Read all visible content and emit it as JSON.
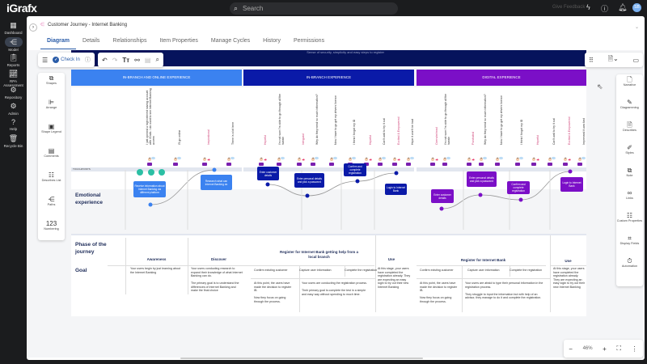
{
  "topbar": {
    "logo": "iGrafx",
    "search_placeholder": "Search",
    "feedback": "Give Feedback",
    "avatar": "SB"
  },
  "nav": [
    {
      "label": "Dashboard",
      "icon": "dashboard-icon"
    },
    {
      "label": "Model",
      "icon": "model-icon",
      "active": true
    },
    {
      "label": "Reports",
      "icon": "reports-icon"
    },
    {
      "label": "RPA Assessment",
      "icon": "rpa-icon"
    },
    {
      "label": "Repository",
      "icon": "repository-icon"
    },
    {
      "label": "Admin",
      "icon": "admin-icon"
    },
    {
      "label": "Help",
      "icon": "help-icon"
    },
    {
      "label": "Recycle Bin",
      "icon": "recycle-bin-icon"
    }
  ],
  "document": {
    "title": "Customer Journey - Internet Banking"
  },
  "tabs": [
    "Diagram",
    "Details",
    "Relationships",
    "Item Properties",
    "Manage Cycles",
    "History",
    "Permissions"
  ],
  "toolbar": {
    "check_in": "Check In"
  },
  "tools": [
    "Shapes",
    "Arrange",
    "Shape Legend",
    "Comments",
    "Describes List",
    "Paths",
    "Numbering"
  ],
  "right_tools": [
    "Narrative",
    "Diagramming",
    "Describes",
    "Styles",
    "Note",
    "Links",
    "Custom Properties",
    "Display Fields",
    "Automation"
  ],
  "zoom": {
    "level": "46%"
  },
  "banner_text": "Sense of security, simplicity and easy steps to register",
  "colors": {
    "section1": "#3b82f0",
    "section2": "#0a1aa8",
    "section3": "#7b0fc7",
    "banner": "#06135c",
    "emotion": "#d0457a"
  },
  "sections": [
    "IN-BRANCH AND ONLINE EXPERIENCE",
    "IN-BRANCH EXPERIENCE",
    "DIGITAL EXPERIENCE"
  ],
  "touchpoints_label": "TOUCHPOINTS",
  "touchpoints": [
    {
      "text": "I just opened a high interest saving account with iGrafx. I do want to see Internet Banking access",
      "emotion": false
    },
    {
      "text": "I'll go online",
      "emotion": false
    },
    {
      "text": "Inspirational",
      "emotion": true
    },
    {
      "text": "There is a lot here",
      "emotion": false
    },
    {
      "text": "Hopeful",
      "emotion": true
    },
    {
      "text": "I'm not sure I'm able to go through all the hassle",
      "emotion": false
    },
    {
      "text": "Intrigued",
      "emotion": true
    },
    {
      "text": "Why do they need so much information?",
      "emotion": false
    },
    {
      "text": "Now I have to go get my drivers licence",
      "emotion": false
    },
    {
      "text": "I think I forgot my ID",
      "emotion": false
    },
    {
      "text": "Hopeful",
      "emotion": true
    },
    {
      "text": "Can't wait to try it out",
      "emotion": false
    },
    {
      "text": "Excited & Empowered",
      "emotion": true
    },
    {
      "text": "Hope it won't be bad",
      "emotion": false
    },
    {
      "text": "Overwhelmed",
      "emotion": true
    },
    {
      "text": "I'm not sure I'm able to go through all the hassle",
      "emotion": false
    },
    {
      "text": "Frustrated",
      "emotion": true
    },
    {
      "text": "Why do they need so much information?",
      "emotion": false
    },
    {
      "text": "Now I have to go get my drivers licence",
      "emotion": false
    },
    {
      "text": "I think I forgot my ID",
      "emotion": false
    },
    {
      "text": "Hopeful",
      "emotion": true
    },
    {
      "text": "Can't wait to try it out",
      "emotion": false
    },
    {
      "text": "Excited & Empowered",
      "emotion": true
    },
    {
      "text": "Impressed it was fast",
      "emotion": false
    }
  ],
  "emotional": {
    "label": "Emotional experience",
    "steps": [
      "Receive information about Internet Banking via different platform",
      "Research what can Internet Banking do",
      "Enter customer details",
      "Enter personal details and pick a password",
      "Confirm and complete registration",
      "Login to Internet Bank",
      "Enter customer details",
      "Enter personal details and pick a password",
      "Confirm and complete registration",
      "Login to Internet Bank"
    ]
  },
  "phase": {
    "label": "Phase of the journey",
    "phases": [
      "Awareness",
      "Discover",
      "Register for Internet Bank getting help from a local branch",
      "Use",
      "Register for Internet Bank",
      "Use"
    ],
    "substeps": [
      "Confirm existing customer",
      "Capture user information",
      "Complete the registration",
      "Confirm existing customer",
      "Capture user information",
      "Complete the registration"
    ]
  },
  "goal": {
    "label": "Goal",
    "texts": [
      "Your users begin by just learning about the Internet Banking",
      "Your users conducting research to expand their knowledge of what Internet Banking can do.\n\nThe primary goal is to understand the differences of Internet Banking and make the final choice",
      "At this point, the users have made the decision to register IB.\n\nNow they focus on going through the process.",
      "Your users are conducting the registration process.\n\nTheir primary goal is complete the test in a simple and easy way without spending to much time.",
      "At this stage, your users have completed the registration already. They are expecting an easy login to try out their new Internet Banking",
      "At this point, the users have made the decision to register IB.\n\nNow they focus on going through the process.",
      "Your users are afraid to type their personal information in the registration process.\n\nThey struggle to input the information but with help of an advisor, they manage to do it and complete the registration.",
      "At this stage, your users have completed the registration already. They are expecting an easy login to try out their new Internet Banking"
    ]
  }
}
